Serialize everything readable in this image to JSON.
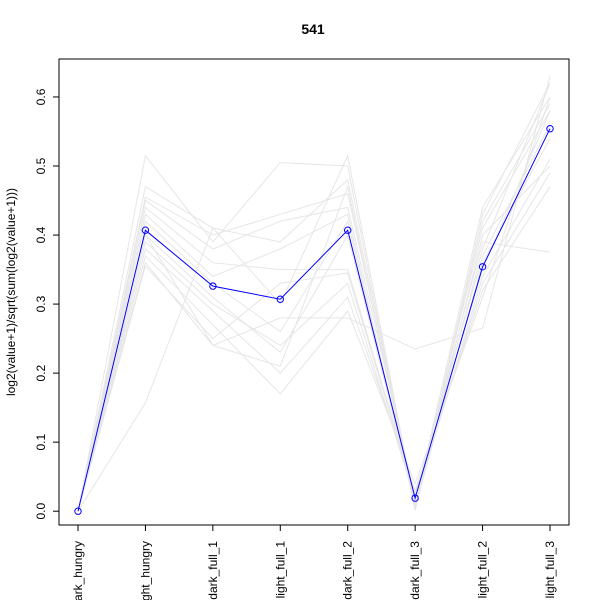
{
  "chart_data": {
    "type": "line",
    "title": "541",
    "xlabel": "",
    "ylabel": "log2(value+1)/sqrt(sum(log2(value+1)))",
    "categories": [
      "dark_hungry",
      "light_hungry",
      "dark_full_1",
      "light_full_1",
      "dark_full_2",
      "dark_full_3",
      "light_full_2",
      "light_full_3"
    ],
    "tick_labels": [
      "dark_hungry",
      "light_hungry",
      "dark_full_1",
      "light_full_1",
      "dark_full_2",
      "dark_full_3",
      "light_full_2",
      "light_full_3"
    ],
    "y_ticks": [
      0.0,
      0.1,
      0.2,
      0.3,
      0.4,
      0.5,
      0.6
    ],
    "y_tick_labels": [
      "0.0",
      "0.1",
      "0.2",
      "0.3",
      "0.4",
      "0.5",
      "0.6"
    ],
    "ylim": [
      -0.02,
      0.655
    ],
    "grid": false,
    "legend": "none",
    "highlight": {
      "color": "#0000ff",
      "marker": "open-circle",
      "values": [
        0.0,
        0.407,
        0.326,
        0.307,
        0.407,
        0.019,
        0.354,
        0.554
      ]
    },
    "background_series": {
      "color": "#e6e6e6",
      "lines": [
        [
          0.0,
          0.515,
          0.39,
          0.505,
          0.5,
          0.003,
          0.43,
          0.62
        ],
        [
          0.0,
          0.47,
          0.41,
          0.39,
          0.48,
          0.01,
          0.44,
          0.6
        ],
        [
          0.0,
          0.455,
          0.4,
          0.43,
          0.46,
          0.015,
          0.41,
          0.58
        ],
        [
          0.0,
          0.45,
          0.38,
          0.42,
          0.44,
          0.02,
          0.39,
          0.375
        ],
        [
          0.0,
          0.44,
          0.36,
          0.35,
          0.35,
          0.025,
          0.37,
          0.56
        ],
        [
          0.0,
          0.43,
          0.34,
          0.38,
          0.43,
          0.005,
          0.36,
          0.54
        ],
        [
          0.0,
          0.42,
          0.33,
          0.26,
          0.42,
          0.008,
          0.38,
          0.62
        ],
        [
          0.0,
          0.4,
          0.31,
          0.23,
          0.4,
          0.012,
          0.34,
          0.51
        ],
        [
          0.0,
          0.39,
          0.3,
          0.24,
          0.33,
          0.018,
          0.33,
          0.49
        ],
        [
          0.0,
          0.38,
          0.29,
          0.2,
          0.31,
          0.03,
          0.32,
          0.47
        ],
        [
          0.0,
          0.37,
          0.27,
          0.17,
          0.29,
          0.04,
          0.31,
          0.6
        ],
        [
          0.0,
          0.36,
          0.24,
          0.28,
          0.28,
          0.235,
          0.265,
          0.63
        ],
        [
          0.0,
          0.355,
          0.25,
          0.33,
          0.345,
          0.02,
          0.35,
          0.58
        ],
        [
          0.0,
          0.157,
          0.41,
          0.3,
          0.515,
          0.006,
          0.42,
          0.59
        ],
        [
          0.0,
          0.4,
          0.24,
          0.21,
          0.47,
          0.001,
          0.4,
          0.5
        ]
      ]
    }
  }
}
